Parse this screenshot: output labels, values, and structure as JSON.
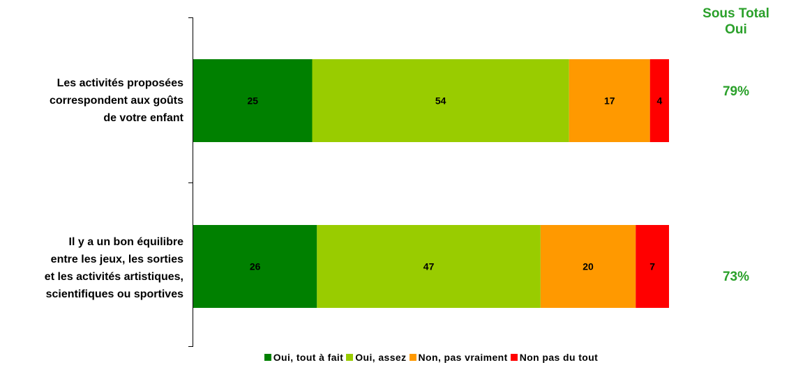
{
  "chart_data": {
    "type": "bar",
    "orientation": "horizontal",
    "stacked": true,
    "xlim": [
      0,
      100
    ],
    "categories": [
      [
        "Les activités proposées",
        "correspondent aux goûts",
        "de votre enfant"
      ],
      [
        "Il y a un bon équilibre",
        "entre les jeux, les sorties",
        "et les activités artistiques,",
        "scientifiques ou sportives"
      ]
    ],
    "series": [
      {
        "name": "Oui, tout à fait",
        "color": "#008000",
        "values": [
          25,
          26
        ]
      },
      {
        "name": "Oui, assez",
        "color": "#99cc00",
        "values": [
          54,
          47
        ]
      },
      {
        "name": "Non, pas vraiment",
        "color": "#ff9900",
        "values": [
          17,
          20
        ]
      },
      {
        "name": "Non pas du tout",
        "color": "#ff0000",
        "values": [
          4,
          7
        ]
      }
    ],
    "subtotal_header": [
      "Sous Total",
      "Oui"
    ],
    "subtotals": [
      "79%",
      "73%"
    ],
    "legend_position": "bottom"
  }
}
